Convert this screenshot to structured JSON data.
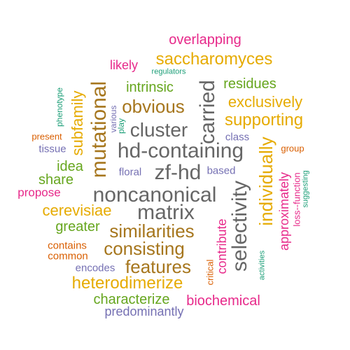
{
  "words": [
    {
      "id": "overlapping",
      "text": "overlapping",
      "color": "#e7298a"
    },
    {
      "id": "saccharomyces",
      "text": "saccharomyces",
      "color": "#e6ab02"
    },
    {
      "id": "likely",
      "text": "likely",
      "color": "#e7298a"
    },
    {
      "id": "regulators",
      "text": "regulators",
      "color": "#1b9e77"
    },
    {
      "id": "intrinsic",
      "text": "intrinsic",
      "color": "#66a61e"
    },
    {
      "id": "residues",
      "text": "residues",
      "color": "#66a61e"
    },
    {
      "id": "phenotype",
      "text": "phenotype",
      "color": "#1b9e77"
    },
    {
      "id": "mutational",
      "text": "mutational",
      "color": "#a6761d"
    },
    {
      "id": "obvious",
      "text": "obvious",
      "color": "#a6761d"
    },
    {
      "id": "exclusively",
      "text": "exclusively",
      "color": "#e6ab02"
    },
    {
      "id": "various",
      "text": "various",
      "color": "#7570b3"
    },
    {
      "id": "play",
      "text": "play",
      "color": "#1b9e77"
    },
    {
      "id": "carried",
      "text": "carried",
      "color": "#666666"
    },
    {
      "id": "supporting",
      "text": "supporting",
      "color": "#e6ab02"
    },
    {
      "id": "subfamily",
      "text": "subfamily",
      "color": "#e6ab02"
    },
    {
      "id": "present",
      "text": "present",
      "color": "#d95f02"
    },
    {
      "id": "cluster",
      "text": "cluster",
      "color": "#666666"
    },
    {
      "id": "class",
      "text": "class",
      "color": "#7570b3"
    },
    {
      "id": "tissue",
      "text": "tissue",
      "color": "#7570b3"
    },
    {
      "id": "hd-containing",
      "text": "hd-containing",
      "color": "#666666"
    },
    {
      "id": "group",
      "text": "group",
      "color": "#d95f02"
    },
    {
      "id": "individually",
      "text": "individually",
      "color": "#e6ab02"
    },
    {
      "id": "idea",
      "text": "idea",
      "color": "#66a61e"
    },
    {
      "id": "floral",
      "text": "floral",
      "color": "#7570b3"
    },
    {
      "id": "zf-hd",
      "text": "zf-hd",
      "color": "#666666"
    },
    {
      "id": "based",
      "text": "based",
      "color": "#7570b3"
    },
    {
      "id": "share",
      "text": "share",
      "color": "#66a61e"
    },
    {
      "id": "suggesting",
      "text": "suggesting",
      "color": "#1b9e77"
    },
    {
      "id": "propose",
      "text": "propose",
      "color": "#e7298a"
    },
    {
      "id": "noncanonical",
      "text": "noncanonical",
      "color": "#666666"
    },
    {
      "id": "approximately",
      "text": "approximately",
      "color": "#e7298a"
    },
    {
      "id": "loss-function",
      "text": "loss--function",
      "color": "#e7298a"
    },
    {
      "id": "selectivity",
      "text": "selectivity",
      "color": "#666666"
    },
    {
      "id": "cerevisiae",
      "text": "cerevisiae",
      "color": "#e6ab02"
    },
    {
      "id": "matrix",
      "text": "matrix",
      "color": "#666666"
    },
    {
      "id": "greater",
      "text": "greater",
      "color": "#66a61e"
    },
    {
      "id": "contribute",
      "text": "contribute",
      "color": "#e7298a"
    },
    {
      "id": "similarities",
      "text": "similarities",
      "color": "#a6761d"
    },
    {
      "id": "contains",
      "text": "contains",
      "color": "#d95f02"
    },
    {
      "id": "consisting",
      "text": "consisting",
      "color": "#a6761d"
    },
    {
      "id": "common",
      "text": "common",
      "color": "#d95f02"
    },
    {
      "id": "critical",
      "text": "critical",
      "color": "#d95f02"
    },
    {
      "id": "activities",
      "text": "activities",
      "color": "#1b9e77"
    },
    {
      "id": "encodes",
      "text": "encodes",
      "color": "#7570b3"
    },
    {
      "id": "features",
      "text": "features",
      "color": "#a6761d"
    },
    {
      "id": "heterodimerize",
      "text": "heterodimerize",
      "color": "#e6ab02"
    },
    {
      "id": "characterize",
      "text": "characterize",
      "color": "#66a61e"
    },
    {
      "id": "biochemical",
      "text": "biochemical",
      "color": "#e7298a"
    },
    {
      "id": "predominantly",
      "text": "predominantly",
      "color": "#7570b3"
    }
  ]
}
